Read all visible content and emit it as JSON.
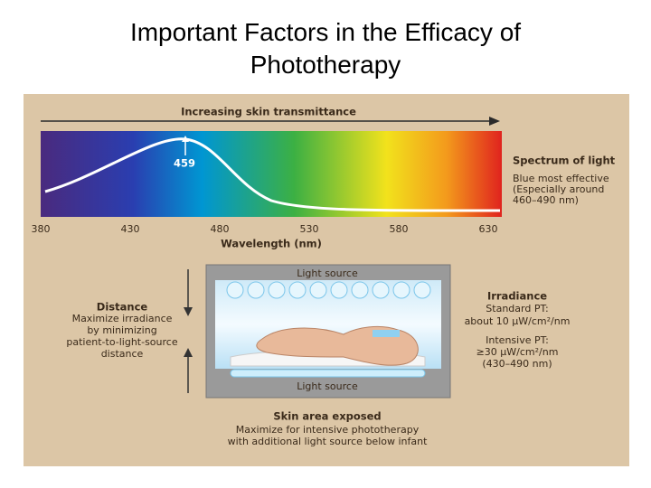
{
  "title": "Important Factors in the Efficacy of Phototherapy",
  "spectrum": {
    "arrow_label": "Increasing skin transmittance",
    "peak_label": "459",
    "ticks": [
      380,
      430,
      480,
      530,
      580,
      630
    ],
    "axis_label": "Wavelength (nm)",
    "heading": "Spectrum of light",
    "lines": [
      "Blue most effective",
      "(Especially around",
      "460–490 nm)"
    ]
  },
  "incubator": {
    "top_label": "Light source",
    "bottom_label": "Light source"
  },
  "distance": {
    "heading": "Distance",
    "lines": [
      "Maximize irradiance",
      "by minimizing",
      "patient-to-light-source",
      "distance"
    ]
  },
  "irradiance": {
    "heading": "Irradiance",
    "lines": [
      "Standard PT:",
      "about 10 µW/cm²/nm",
      "Intensive PT:",
      "≥30 µW/cm²/nm",
      "(430–490 nm)"
    ]
  },
  "skin_area": {
    "heading": "Skin area exposed",
    "lines": [
      "Maximize for intensive phototherapy",
      "with additional light source below infant"
    ]
  }
}
